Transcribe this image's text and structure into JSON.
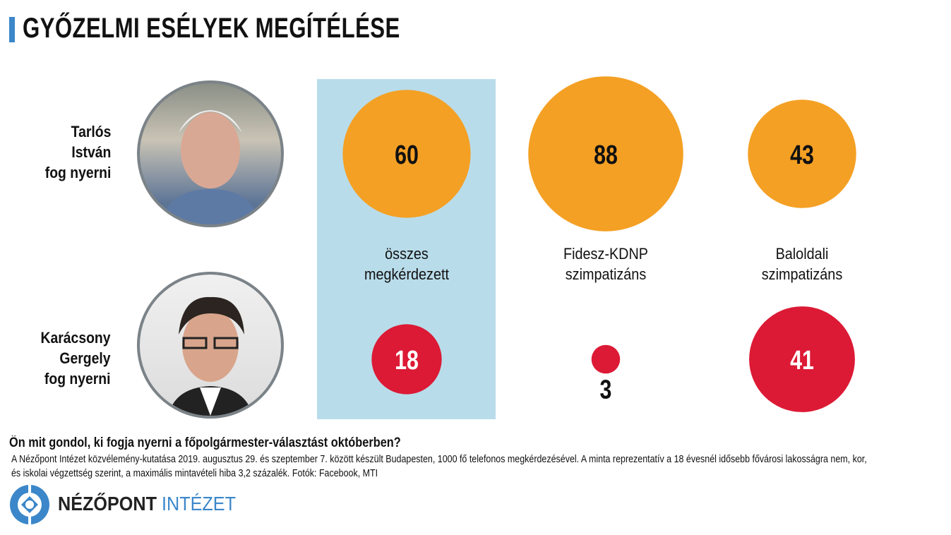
{
  "title": "GYŐZELMI ESÉLYEK MEGÍTÉLÉSE",
  "colors": {
    "accent": "#3B87C9",
    "tarlos": "#F4A024",
    "karacsony": "#DC1A35",
    "highlight": "#B9DCEA"
  },
  "candidates": [
    {
      "label_lines": [
        "Tarlós",
        "István",
        "fog nyerni"
      ]
    },
    {
      "label_lines": [
        "Karácsony",
        "Gergely",
        "fog nyerni"
      ]
    }
  ],
  "chart_data": {
    "type": "bubble",
    "title": "GYŐZELMI ESÉLYEK MEGÍTÉLÉSE",
    "categories": [
      {
        "lines": [
          "összes",
          "megkérdezett"
        ]
      },
      {
        "lines": [
          "Fidesz-KDNP",
          "szimpatizáns"
        ]
      },
      {
        "lines": [
          "Baloldali",
          "szimpatizáns"
        ]
      }
    ],
    "series": [
      {
        "name": "Tarlós István fog nyerni",
        "values": [
          60,
          88,
          43
        ]
      },
      {
        "name": "Karácsony Gergely fog nyerni",
        "values": [
          18,
          3,
          41
        ]
      }
    ],
    "unit": "%",
    "highlighted_category": 0
  },
  "question": "Ön mit gondol, ki fogja nyerni a főpolgármester-választást októberben?",
  "note_lines": [
    "A Nézőpont Intézet közvélemény-kutatása 2019. augusztus 29. és szeptember 7. között készült Budapesten, 1000 fő telefonos megkérdezésével. A minta reprezentatív a 18 évesnél idősebb fővárosi lakosságra nem, kor,",
    "és iskolai végzettség szerint, a maximális mintavételi hiba 3,2 százalék. Fotók: Facebook, MTI"
  ],
  "logo": {
    "word1": "NÉZŐPONT",
    "word2": "INTÉZET"
  }
}
